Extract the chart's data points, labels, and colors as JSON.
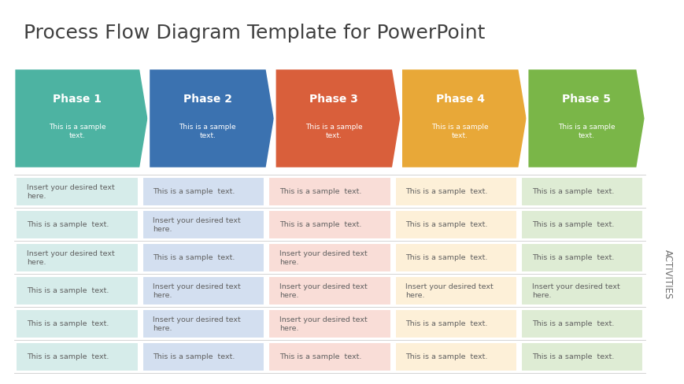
{
  "title": "Process Flow Diagram Template for PowerPoint",
  "title_fontsize": 18,
  "title_color": "#404040",
  "phases": [
    "Phase 1",
    "Phase 2",
    "Phase 3",
    "Phase 4",
    "Phase 5"
  ],
  "phase_subtexts": [
    "This is a sample\ntext.",
    "This is a sample\ntext.",
    "This is a sample\ntext.",
    "This is a sample\ntext.",
    "This is a sample\ntext."
  ],
  "phase_colors": [
    "#4db3a2",
    "#3b72b0",
    "#d95f3b",
    "#e8a838",
    "#7ab648"
  ],
  "phase_light_colors": [
    "#d6ecea",
    "#d3dff0",
    "#f9ddd7",
    "#fdf0d8",
    "#deecd4"
  ],
  "row_data": [
    [
      "Insert your desired text\nhere.",
      "This is a sample  text.",
      "This is a sample  text.",
      "This is a sample  text.",
      "This is a sample  text."
    ],
    [
      "This is a sample  text.",
      "Insert your desired text\nhere.",
      "This is a sample  text.",
      "This is a sample  text.",
      "This is a sample  text."
    ],
    [
      "Insert your desired text\nhere.",
      "This is a sample  text.",
      "Insert your desired text\nhere.",
      "This is a sample  text.",
      "This is a sample  text."
    ],
    [
      "This is a sample  text.",
      "Insert your desired text\nhere.",
      "Insert your desired text\nhere.",
      "Insert your desired text\nhere.",
      "Insert your desired text\nhere."
    ],
    [
      "This is a sample  text.",
      "Insert your desired text\nhere.",
      "Insert your desired text\nhere.",
      "This is a sample  text.",
      "This is a sample  text."
    ],
    [
      "This is a sample  text.",
      "This is a sample  text.",
      "This is a sample  text.",
      "This is a sample  text.",
      "This is a sample  text."
    ]
  ],
  "activities_label": "ACTIVITIES",
  "bg_color": "#ffffff",
  "grid_line_color": "#cccccc",
  "cell_text_color": "#606060",
  "cell_text_fontsize": 6.8,
  "phase_label_fontsize": 10,
  "phase_subtext_fontsize": 6.5
}
